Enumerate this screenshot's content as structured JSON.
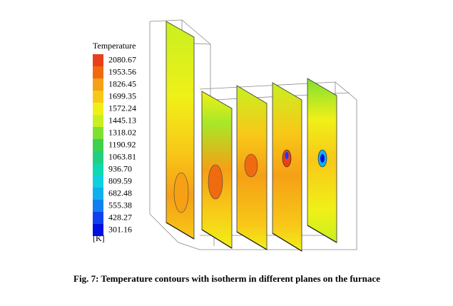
{
  "legend": {
    "title": "Temperature",
    "levels": [
      "2080.67",
      "1953.56",
      "1826.45",
      "1699.35",
      "1572.24",
      "1445.13",
      "1318.02",
      "1190.92",
      "1063.81",
      "936.70",
      "809.59",
      "682.48",
      "555.38",
      "428.27",
      "301.16"
    ],
    "colors": [
      "#e8401a",
      "#f06a10",
      "#f5a015",
      "#f8c818",
      "#f0f018",
      "#c8f020",
      "#80e030",
      "#40d050",
      "#20d080",
      "#10d8b0",
      "#10d0e0",
      "#10b0f0",
      "#1080f0",
      "#1040f0",
      "#0010e0"
    ],
    "unit": "[K]"
  },
  "caption": "Fig. 7: Temperature contours with isotherm in different planes on the furnace"
}
